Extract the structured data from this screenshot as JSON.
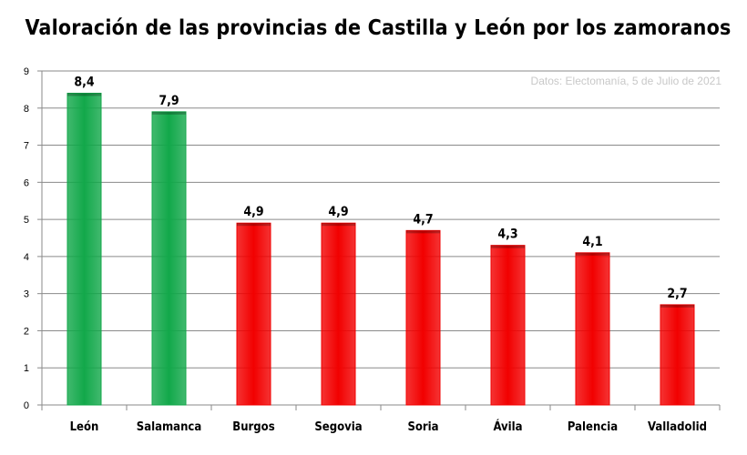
{
  "chart_data": {
    "type": "bar",
    "title": "Valoración de las provincias de Castilla y León por los zamoranos",
    "source_note": "Datos: Electomanía, 5 de Julio de 2021",
    "categories": [
      "León",
      "Salamanca",
      "Burgos",
      "Segovia",
      "Soria",
      "Ávila",
      "Palencia",
      "Valladolid"
    ],
    "values": [
      8.4,
      7.9,
      4.9,
      4.9,
      4.7,
      4.3,
      4.1,
      2.7
    ],
    "data_labels": [
      "8,4",
      "7,9",
      "4,9",
      "4,9",
      "4,7",
      "4,3",
      "4,1",
      "2,7"
    ],
    "bar_colors": [
      "#12a84a",
      "#12a84a",
      "#f20000",
      "#f20000",
      "#f20000",
      "#f20000",
      "#f20000",
      "#f20000"
    ],
    "ylim": [
      0,
      9
    ],
    "yticks": [
      "0",
      "1",
      "2",
      "3",
      "4",
      "5",
      "6",
      "7",
      "8",
      "9"
    ],
    "grid": true,
    "xlabel": "",
    "ylabel": ""
  }
}
